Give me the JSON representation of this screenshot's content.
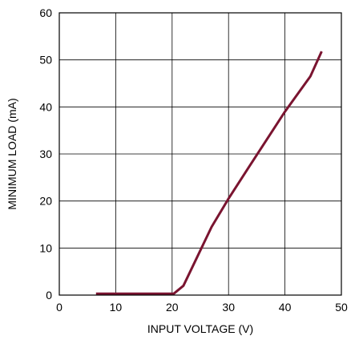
{
  "chart_data": {
    "type": "line",
    "title": "",
    "xlabel": "INPUT VOLTAGE (V)",
    "ylabel": "MINIMUM LOAD (mA)",
    "xlim": [
      0,
      50
    ],
    "ylim": [
      0,
      60
    ],
    "xticks": [
      0,
      10,
      20,
      30,
      40,
      50
    ],
    "yticks": [
      0,
      10,
      20,
      30,
      40,
      50,
      60
    ],
    "xtick_labels": [
      "0",
      "10",
      "20",
      "30",
      "40",
      "50"
    ],
    "ytick_labels": [
      "0",
      "10",
      "20",
      "30",
      "40",
      "50",
      "60"
    ],
    "grid": true,
    "series": [
      {
        "color": "#7a1430",
        "x": [
          6.5,
          20.3,
          22.0,
          27.0,
          30.0,
          33.5,
          40.0,
          44.5,
          46.5
        ],
        "y": [
          0.3,
          0.3,
          2.0,
          14.5,
          20.5,
          27.0,
          39.0,
          46.5,
          51.8
        ]
      }
    ]
  }
}
